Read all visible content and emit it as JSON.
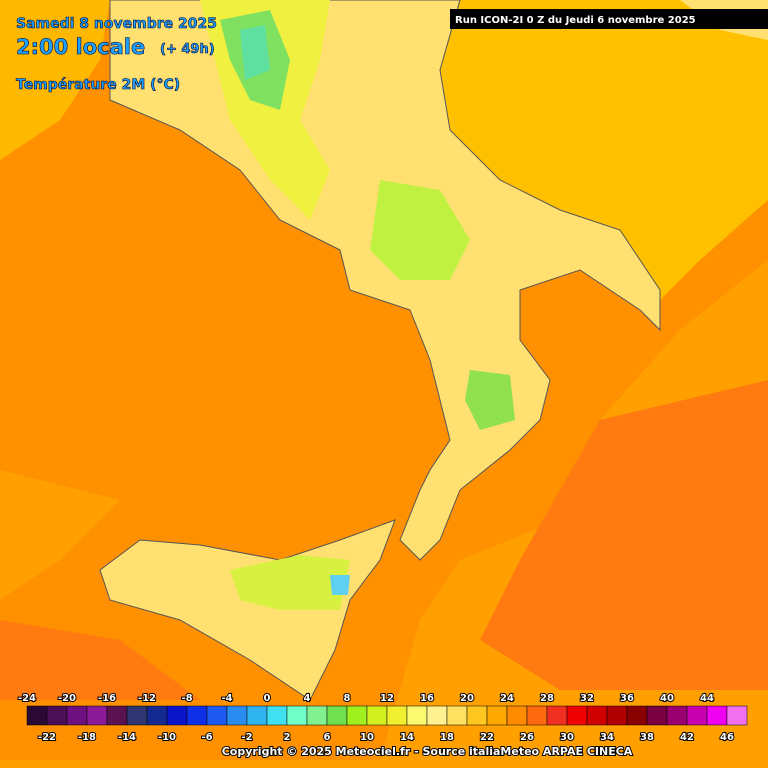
{
  "header": {
    "date": "Samedi 8 novembre 2025",
    "time": "2:00 locale",
    "lead": "(+ 49h)",
    "parameter": "Température 2M (°C)",
    "run": "Run ICON-2I 0 Z du Jeudi 6 novembre 2025"
  },
  "legend": {
    "labels": [
      -24,
      -22,
      -20,
      -18,
      -16,
      -14,
      -12,
      -10,
      -8,
      -6,
      -4,
      -2,
      0,
      2,
      4,
      6,
      8,
      10,
      12,
      14,
      16,
      18,
      20,
      22,
      24,
      26,
      28,
      30,
      32,
      34,
      36,
      38,
      40,
      42,
      44,
      46
    ],
    "colors": [
      "#2a0a35",
      "#4a0f55",
      "#6e1080",
      "#8a1a96",
      "#5a1250",
      "#2e3570",
      "#152a90",
      "#0a14c8",
      "#1030e8",
      "#1e5af0",
      "#2a8cf0",
      "#30b4f0",
      "#40e0f0",
      "#70ffc8",
      "#80f090",
      "#70e050",
      "#a0f020",
      "#d0f020",
      "#f0f030",
      "#fafa70",
      "#fff090",
      "#ffe060",
      "#ffc820",
      "#ffa800",
      "#ff8c00",
      "#ff6a10",
      "#f03020",
      "#f00000",
      "#d00000",
      "#b00000",
      "#880000",
      "#780040",
      "#9a0070",
      "#c800b0",
      "#f000f0",
      "#f070f0"
    ]
  },
  "footer": {
    "copyright": "Copyright © 2025 Meteociel.fr - Source italiaMeteo ARPAE CINECA"
  }
}
